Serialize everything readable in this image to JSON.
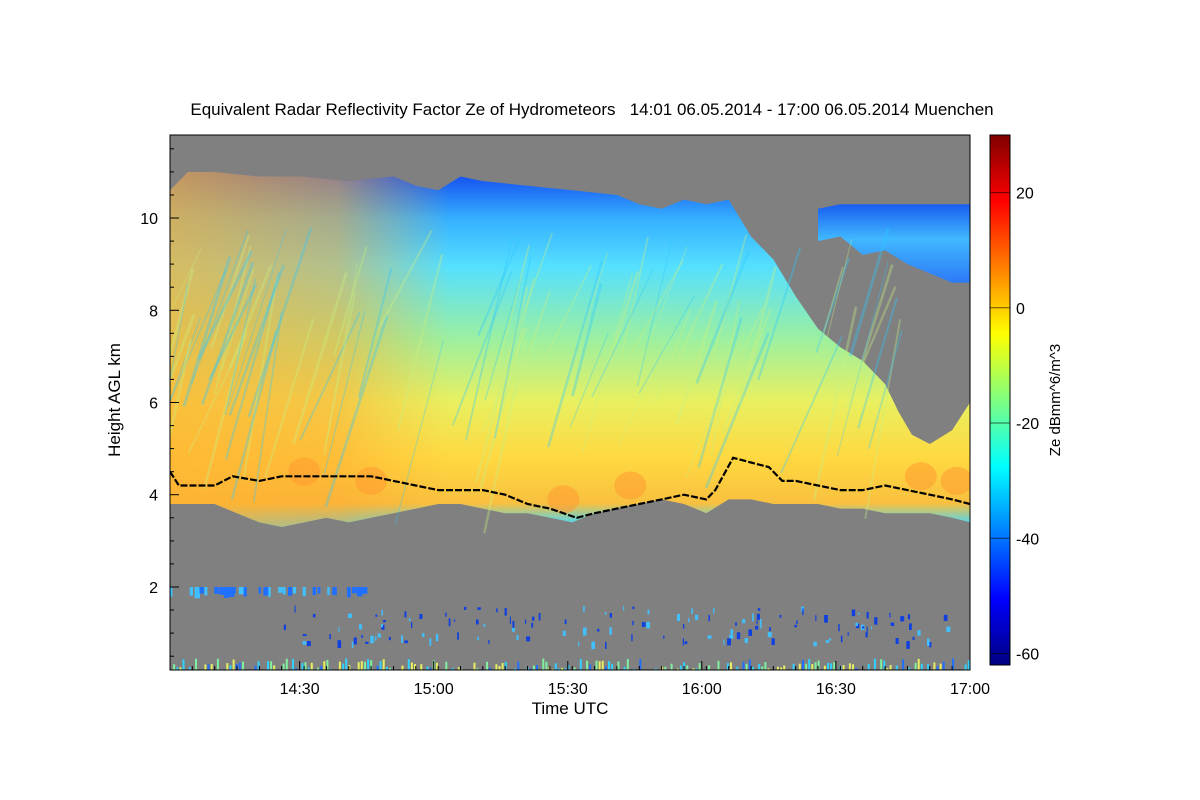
{
  "chart_data": {
    "type": "heatmap",
    "title": "Equivalent Radar Reflectivity Factor Ze of Hydrometeors   14:01 06.05.2014 - 17:00 06.05.2014 Muenchen",
    "xlabel": "Time UTC",
    "ylabel": "Height AGL km",
    "colorbar_label": "Ze dBmm^6/m^3",
    "x_range_minutes": [
      0,
      179
    ],
    "x_ticks": [
      {
        "minute": 29,
        "label": "14:30"
      },
      {
        "minute": 59,
        "label": "15:00"
      },
      {
        "minute": 89,
        "label": "15:30"
      },
      {
        "minute": 119,
        "label": "16:00"
      },
      {
        "minute": 149,
        "label": "16:30"
      },
      {
        "minute": 179,
        "label": "17:00"
      }
    ],
    "y_range_km": [
      0.2,
      11.8
    ],
    "y_ticks": [
      2,
      4,
      6,
      8,
      10
    ],
    "z_range_dbz": [
      -62,
      30
    ],
    "z_ticks": [
      -60,
      -40,
      -20,
      0,
      20
    ],
    "background_color": "#808080",
    "echo_top_km": [
      [
        0,
        10.6
      ],
      [
        4,
        11.0
      ],
      [
        10,
        11.0
      ],
      [
        20,
        10.9
      ],
      [
        30,
        10.9
      ],
      [
        40,
        10.8
      ],
      [
        50,
        10.9
      ],
      [
        55,
        10.7
      ],
      [
        60,
        10.6
      ],
      [
        65,
        10.9
      ],
      [
        70,
        10.8
      ],
      [
        80,
        10.7
      ],
      [
        90,
        10.6
      ],
      [
        100,
        10.5
      ],
      [
        105,
        10.3
      ],
      [
        110,
        10.2
      ],
      [
        115,
        10.4
      ],
      [
        120,
        10.3
      ],
      [
        125,
        10.4
      ],
      [
        130,
        9.6
      ],
      [
        135,
        9.1
      ],
      [
        140,
        8.3
      ],
      [
        145,
        7.6
      ],
      [
        150,
        7.2
      ],
      [
        155,
        6.9
      ],
      [
        160,
        6.4
      ],
      [
        163,
        5.8
      ],
      [
        166,
        5.3
      ],
      [
        170,
        5.1
      ],
      [
        175,
        5.4
      ],
      [
        179,
        6.0
      ]
    ],
    "upper_layer_km": [
      [
        145,
        9.5,
        10.2
      ],
      [
        150,
        9.6,
        10.3
      ],
      [
        155,
        9.2,
        10.3
      ],
      [
        160,
        9.3,
        10.3
      ],
      [
        165,
        9.0,
        10.3
      ],
      [
        170,
        8.8,
        10.3
      ],
      [
        175,
        8.6,
        10.3
      ],
      [
        179,
        8.6,
        10.3
      ]
    ],
    "cloud_base_km": [
      [
        0,
        3.8
      ],
      [
        5,
        3.8
      ],
      [
        10,
        3.8
      ],
      [
        15,
        3.6
      ],
      [
        20,
        3.4
      ],
      [
        25,
        3.3
      ],
      [
        30,
        3.4
      ],
      [
        35,
        3.5
      ],
      [
        40,
        3.4
      ],
      [
        45,
        3.5
      ],
      [
        50,
        3.6
      ],
      [
        55,
        3.7
      ],
      [
        60,
        3.8
      ],
      [
        65,
        3.8
      ],
      [
        70,
        3.7
      ],
      [
        75,
        3.6
      ],
      [
        80,
        3.6
      ],
      [
        85,
        3.5
      ],
      [
        90,
        3.4
      ],
      [
        95,
        3.6
      ],
      [
        100,
        3.7
      ],
      [
        105,
        3.8
      ],
      [
        110,
        3.9
      ],
      [
        115,
        3.8
      ],
      [
        120,
        3.6
      ],
      [
        125,
        3.9
      ],
      [
        130,
        3.9
      ],
      [
        135,
        3.8
      ],
      [
        140,
        3.8
      ],
      [
        145,
        3.8
      ],
      [
        150,
        3.7
      ],
      [
        155,
        3.7
      ],
      [
        160,
        3.6
      ],
      [
        165,
        3.6
      ],
      [
        170,
        3.6
      ],
      [
        175,
        3.5
      ],
      [
        179,
        3.4
      ]
    ],
    "melting_layer_km": [
      [
        0,
        4.5
      ],
      [
        2,
        4.2
      ],
      [
        10,
        4.2
      ],
      [
        14,
        4.4
      ],
      [
        20,
        4.3
      ],
      [
        25,
        4.4
      ],
      [
        35,
        4.4
      ],
      [
        45,
        4.4
      ],
      [
        50,
        4.3
      ],
      [
        55,
        4.2
      ],
      [
        60,
        4.1
      ],
      [
        65,
        4.1
      ],
      [
        70,
        4.1
      ],
      [
        75,
        4.0
      ],
      [
        80,
        3.8
      ],
      [
        85,
        3.7
      ],
      [
        88,
        3.6
      ],
      [
        91,
        3.5
      ],
      [
        95,
        3.6
      ],
      [
        100,
        3.7
      ],
      [
        105,
        3.8
      ],
      [
        110,
        3.9
      ],
      [
        115,
        4.0
      ],
      [
        120,
        3.9
      ],
      [
        122,
        4.1
      ],
      [
        126,
        4.8
      ],
      [
        130,
        4.7
      ],
      [
        134,
        4.6
      ],
      [
        137,
        4.3
      ],
      [
        140,
        4.3
      ],
      [
        145,
        4.2
      ],
      [
        150,
        4.1
      ],
      [
        155,
        4.1
      ],
      [
        160,
        4.2
      ],
      [
        165,
        4.1
      ],
      [
        170,
        4.0
      ],
      [
        175,
        3.9
      ],
      [
        179,
        3.8
      ]
    ],
    "low_clutter_band_km": [
      1.75,
      2.0
    ],
    "low_clutter_span_minutes": [
      0,
      45
    ],
    "surface_clutter_km": [
      0.2,
      0.45
    ]
  }
}
